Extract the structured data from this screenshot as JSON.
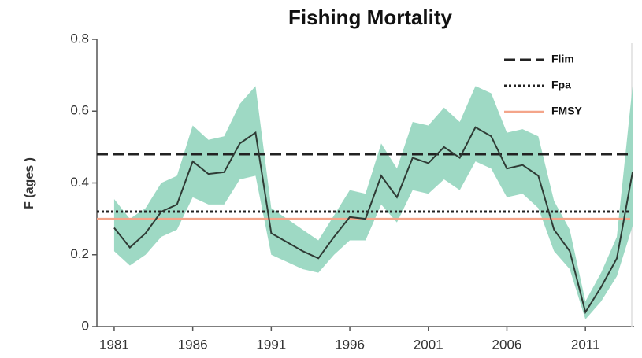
{
  "chart_data": {
    "type": "line",
    "title": "Fishing Mortality",
    "y_label": "F (ages )",
    "x": [
      1981,
      1982,
      1983,
      1984,
      1985,
      1986,
      1987,
      1988,
      1989,
      1990,
      1991,
      1992,
      1993,
      1994,
      1995,
      1996,
      1997,
      1998,
      1999,
      2000,
      2001,
      2002,
      2003,
      2004,
      2005,
      2006,
      2007,
      2008,
      2009,
      2010,
      2011,
      2012,
      2013,
      2014
    ],
    "values": [
      0.275,
      0.22,
      0.26,
      0.32,
      0.34,
      0.46,
      0.425,
      0.43,
      0.51,
      0.54,
      0.26,
      0.235,
      0.21,
      0.19,
      0.25,
      0.305,
      0.3,
      0.42,
      0.36,
      0.47,
      0.455,
      0.5,
      0.47,
      0.555,
      0.53,
      0.44,
      0.45,
      0.42,
      0.27,
      0.21,
      0.04,
      0.11,
      0.19,
      0.43
    ],
    "color": "#2f3b35",
    "band": {
      "color": "#9ed9c4",
      "upper": [
        0.355,
        0.3,
        0.33,
        0.4,
        0.42,
        0.56,
        0.52,
        0.53,
        0.62,
        0.67,
        0.33,
        0.3,
        0.27,
        0.24,
        0.31,
        0.38,
        0.37,
        0.51,
        0.44,
        0.57,
        0.56,
        0.61,
        0.57,
        0.67,
        0.65,
        0.54,
        0.55,
        0.53,
        0.35,
        0.27,
        0.07,
        0.15,
        0.25,
        0.67
      ],
      "lower": [
        0.21,
        0.17,
        0.2,
        0.25,
        0.27,
        0.36,
        0.34,
        0.34,
        0.41,
        0.42,
        0.2,
        0.18,
        0.16,
        0.15,
        0.2,
        0.24,
        0.24,
        0.34,
        0.29,
        0.38,
        0.37,
        0.41,
        0.38,
        0.46,
        0.44,
        0.36,
        0.37,
        0.33,
        0.21,
        0.16,
        0.02,
        0.07,
        0.14,
        0.28
      ]
    },
    "reference_lines": [
      {
        "name": "Flim",
        "value": 0.48,
        "color": "#222222",
        "style": "dashed"
      },
      {
        "name": "Fpa",
        "value": 0.32,
        "color": "#222222",
        "style": "dotted"
      },
      {
        "name": "FMSY",
        "value": 0.3,
        "color": "#f4a58a",
        "style": "solid"
      }
    ],
    "xlim": [
      1979.9,
      2014.1
    ],
    "xticks": [
      1981,
      1986,
      1991,
      1996,
      2001,
      2006,
      2011
    ],
    "ylim": [
      0,
      0.8
    ],
    "yticks": [
      0,
      0.2,
      0.4,
      0.6,
      0.8
    ],
    "legend": "top-right"
  }
}
